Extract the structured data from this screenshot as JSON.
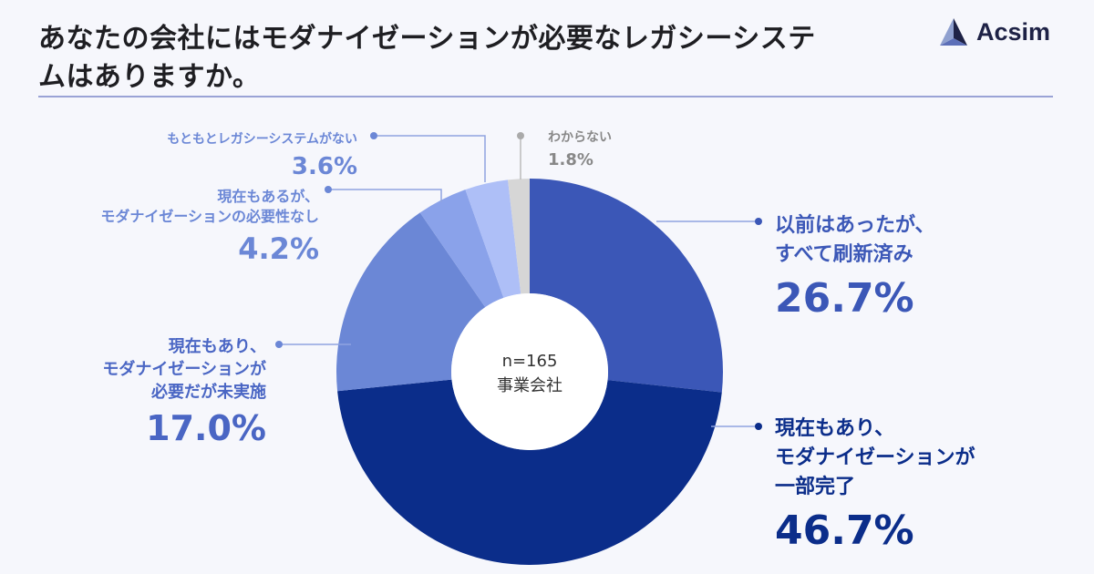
{
  "header": {
    "title": "あなたの会社にはモダナイゼーションが必要なレガシーシステムはありますか。",
    "brand": "Acsim"
  },
  "colors": {
    "accent": "#3b57b7",
    "dark": "#0b2d8a"
  },
  "chart_data": {
    "type": "pie",
    "title": "あなたの会社にはモダナイゼーションが必要なレガシーシステムはありますか。",
    "center_label": [
      "n=165",
      "事業会社"
    ],
    "slices": [
      {
        "label": "以前はあったが、すべて刷新済み",
        "label_lines": [
          "以前はあったが、",
          "すべて刷新済み"
        ],
        "value": 26.7,
        "value_text": "26.7%",
        "color": "#3b57b7"
      },
      {
        "label": "現在もあり、モダナイゼーションが一部完了",
        "label_lines": [
          "現在もあり、",
          "モダナイゼーションが",
          "一部完了"
        ],
        "value": 46.7,
        "value_text": "46.7%",
        "color": "#0b2d8a"
      },
      {
        "label": "現在もあり、モダナイゼーションが必要だが未実施",
        "label_lines": [
          "現在もあり、",
          "モダナイゼーションが",
          "必要だが未実施"
        ],
        "value": 17.0,
        "value_text": "17.0%",
        "color": "#6b87d6"
      },
      {
        "label": "現在もあるが、モダナイゼーションの必要性なし",
        "label_lines": [
          "現在もあるが、",
          "モダナイゼーションの必要性なし"
        ],
        "value": 4.2,
        "value_text": "4.2%",
        "color": "#8aa2ea"
      },
      {
        "label": "もともとレガシーシステムがない",
        "label_lines": [
          "もともとレガシーシステムがない"
        ],
        "value": 3.6,
        "value_text": "3.6%",
        "color": "#aebff7"
      },
      {
        "label": "わからない",
        "label_lines": [
          "わからない"
        ],
        "value": 1.8,
        "value_text": "1.8%",
        "color": "#d6d6d6"
      }
    ]
  }
}
